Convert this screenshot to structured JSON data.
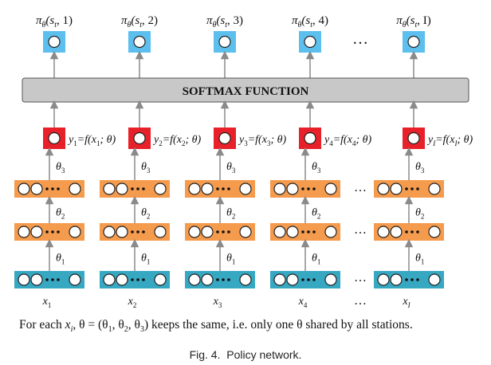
{
  "outputs": [
    {
      "label": "π",
      "sub": "θ",
      "args": "(s",
      "t": "t",
      "idx": ", 1)"
    },
    {
      "label": "π",
      "sub": "θ",
      "args": "(s",
      "t": "t",
      "idx": ", 2)"
    },
    {
      "label": "π",
      "sub": "θ",
      "args": "(s",
      "t": "t",
      "idx": ", 3)"
    },
    {
      "label": "π",
      "sub": "θ",
      "args": "(s",
      "t": "t",
      "idx": ", 4)"
    },
    {
      "label": "π",
      "sub": "θ",
      "args": "(s",
      "t": "t",
      "idx": ", I)"
    }
  ],
  "softmax_label": "SOFTMAX FUNCTION",
  "y_labels": [
    {
      "y": "y",
      "ys": "1",
      "eq": "=f (x",
      "xs": "1",
      "tail": "; θ)"
    },
    {
      "y": "y",
      "ys": "2",
      "eq": "=f (x",
      "xs": "2",
      "tail": "; θ)"
    },
    {
      "y": "y",
      "ys": "3",
      "eq": "=f (x",
      "xs": "3",
      "tail": "; θ)"
    },
    {
      "y": "y",
      "ys": "4",
      "eq": "=f (x",
      "xs": "4",
      "tail": "; θ)"
    },
    {
      "y": "y",
      "ys": "I",
      "eq": "=f (x",
      "xs": "I",
      "tail": "; θ)"
    }
  ],
  "theta_labels": [
    {
      "t": "θ",
      "s": "3"
    },
    {
      "t": "θ",
      "s": "2"
    },
    {
      "t": "θ",
      "s": "1"
    }
  ],
  "x_labels": [
    {
      "x": "x",
      "s": "1"
    },
    {
      "x": "x",
      "s": "2"
    },
    {
      "x": "x",
      "s": "3"
    },
    {
      "x": "x",
      "s": "4"
    },
    {
      "x": "x",
      "s": "I"
    }
  ],
  "ellipsis": "…",
  "note": "For each x, θ = (θ1, θ2, θ3) keeps the same, i.e. only one θ shared by all stations.",
  "note_parts": {
    "a": "For each ",
    "x": "x",
    "xs": "i",
    "b": ", θ = (θ",
    "s1": "1",
    "c": ", θ",
    "s2": "2",
    "d": ", θ",
    "s3": "3",
    "e": ") keeps the same, i.e. only one θ shared by all stations."
  },
  "caption": "Fig. 4.  Policy network.",
  "colors": {
    "output_box": "#5cbfee",
    "softmax_fill": "#c8c8c8",
    "y_box": "#e8202a",
    "hidden_box": "#f59b4d",
    "input_box": "#36a8c2",
    "arrow": "#8a8a8a"
  }
}
